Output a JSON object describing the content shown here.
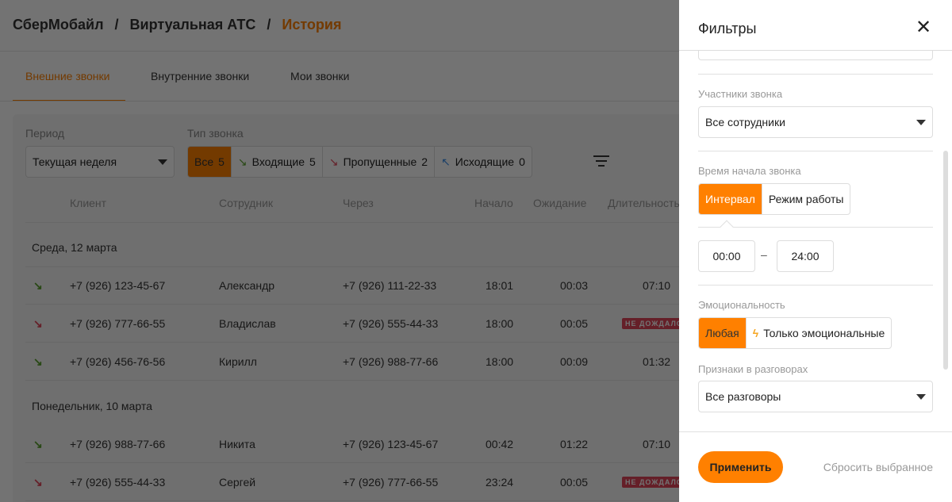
{
  "breadcrumb": [
    "СберМобайл",
    "Виртуальная АТС",
    "История"
  ],
  "tabs": [
    {
      "label": "Внешние звонки",
      "active": true
    },
    {
      "label": "Внутренние звонки"
    },
    {
      "label": "Мои звонки"
    }
  ],
  "filters": {
    "period_label": "Период",
    "period_value": "Текущая неделя",
    "type_label": "Тип звонка",
    "types": [
      {
        "label": "Все",
        "count": "5",
        "active": true
      },
      {
        "label": "Входящие",
        "count": "5",
        "icon": "incoming-call-icon"
      },
      {
        "label": "Пропущенные",
        "count": "2",
        "icon": "missed-call-icon"
      },
      {
        "label": "Исходящие",
        "count": "0",
        "icon": "outgoing-call-icon"
      }
    ]
  },
  "table": {
    "headers": [
      "Клиент",
      "Сотрудник",
      "Через",
      "Начало",
      "Ожидание",
      "Длительность"
    ],
    "groups": [
      {
        "date": "Среда, 12 марта",
        "rows": [
          {
            "type": "incoming",
            "client": "+7 (926) 123-45-67",
            "employee": "Александр",
            "via": "+7 (926) 111-22-33",
            "start": "18:01",
            "wait": "00:03",
            "duration": "07:10"
          },
          {
            "type": "missed",
            "client": "+7 (926) 777-66-55",
            "employee": "Владислав",
            "via": "+7 (926) 555-44-33",
            "start": "18:00",
            "wait": "00:05",
            "badge": "НЕ ДОЖДАЛСЯ"
          },
          {
            "type": "incoming",
            "client": "+7 (926) 456-76-56",
            "employee": "Кирилл",
            "via": "+7 (926) 988-77-66",
            "start": "18:00",
            "wait": "00:09",
            "duration": "01:32"
          }
        ]
      },
      {
        "date": "Понедельник, 10 марта",
        "rows": [
          {
            "type": "incoming",
            "client": "+7 (926) 988-77-66",
            "employee": "Никита",
            "via": "+7 (926) 123-45-67",
            "start": "00:42",
            "wait": "01:22",
            "duration": "07:10"
          },
          {
            "type": "missed",
            "client": "+7 (926) 555-44-33",
            "employee": "Сергей",
            "via": "+7 (926) 777-66-55",
            "start": "23:24",
            "wait": "00:05",
            "badge": "НЕ ДОЖДАЛСЯ"
          }
        ]
      }
    ]
  },
  "panel": {
    "title": "Фильтры",
    "participants_label": "Участники звонка",
    "participants_value": "Все сотрудники",
    "start_time_label": "Время начала звонка",
    "time_modes": [
      "Интервал",
      "Режим работы"
    ],
    "time_from": "00:00",
    "time_to": "24:00",
    "dash": "–",
    "emotion_label": "Эмоциональность",
    "emotion_options": [
      "Любая",
      "Только эмоциональные"
    ],
    "signs_label": "Признаки в разговорах",
    "signs_value": "Все разговоры",
    "apply": "Применить",
    "reset": "Сбросить выбранное"
  },
  "colors": {
    "accent": "#ff8000",
    "incoming": "#5aa02c",
    "missed": "#e0455a",
    "outgoing": "#3a8ee6"
  }
}
